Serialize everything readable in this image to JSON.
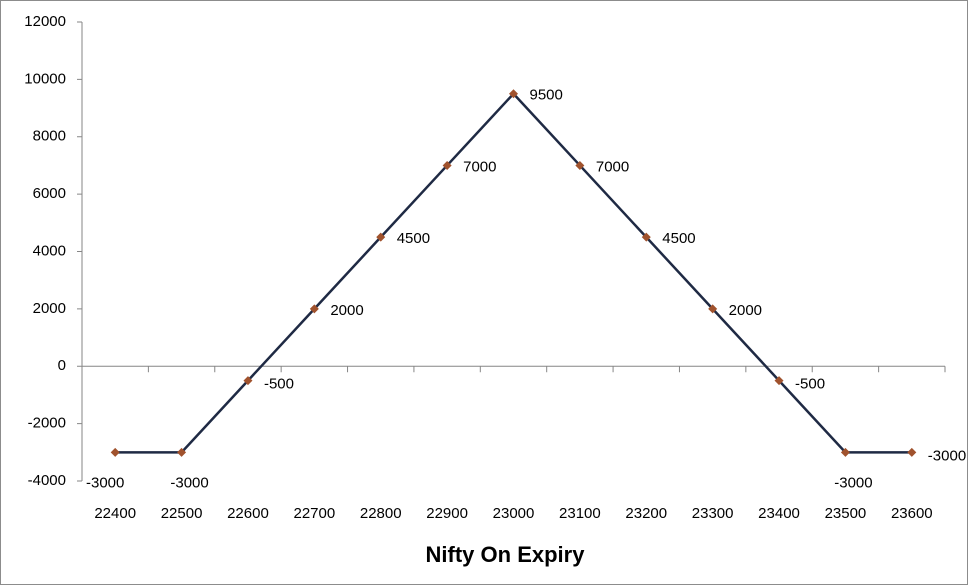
{
  "chart_data": {
    "type": "line",
    "x_label": "Nifty On Expiry",
    "categories": [
      "22400",
      "22500",
      "22600",
      "22700",
      "22800",
      "22900",
      "23000",
      "23100",
      "23200",
      "23300",
      "23400",
      "23500",
      "23600"
    ],
    "values": [
      -3000,
      -3000,
      -500,
      2000,
      4500,
      7000,
      9500,
      7000,
      4500,
      2000,
      -500,
      -3000,
      -3000
    ],
    "color": "#1f2a44",
    "marker_color": "#a0522d",
    "ylim": [
      -4000,
      12000
    ],
    "yticks": [
      -4000,
      -2000,
      0,
      2000,
      4000,
      6000,
      8000,
      10000,
      12000
    ],
    "grid": false
  }
}
